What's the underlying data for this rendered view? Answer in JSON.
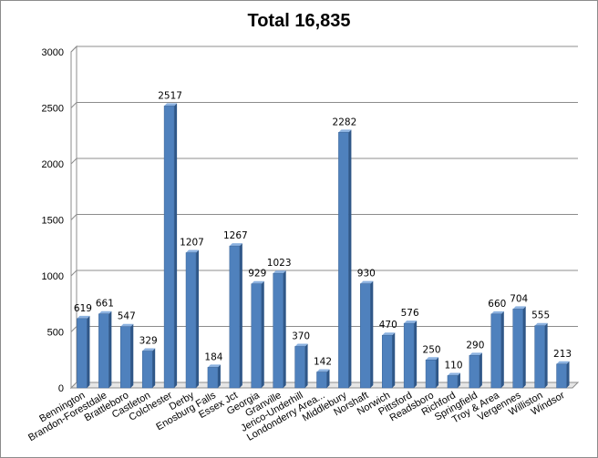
{
  "chart_data": {
    "type": "bar",
    "style": "3d-column",
    "title": "Total 16,835",
    "xlabel": "",
    "ylabel": "",
    "ylim": [
      0,
      3000
    ],
    "yticks": [
      0,
      500,
      1000,
      1500,
      2000,
      2500,
      3000
    ],
    "grid": true,
    "legend": "none",
    "bar_color": "#4f81bd",
    "categories": [
      "Bennington",
      "Brandon-Forestdale",
      "Brattleboro",
      "Castleton",
      "Colchester",
      "Derby",
      "Enosburg Falls",
      "Essex Jct",
      "Georgia",
      "Granville",
      "Jerico-Underhill",
      "Londonderry Area...",
      "Middlebury",
      "Norshaft",
      "Norwich",
      "Pittsford",
      "Readsboro",
      "Richford",
      "Springfield",
      "Troy & Area",
      "Vergennes",
      "Williston",
      "Windsor"
    ],
    "values": [
      619,
      661,
      547,
      329,
      2517,
      1207,
      184,
      1267,
      929,
      1023,
      370,
      142,
      2282,
      930,
      470,
      576,
      250,
      110,
      290,
      660,
      704,
      555,
      213
    ]
  }
}
